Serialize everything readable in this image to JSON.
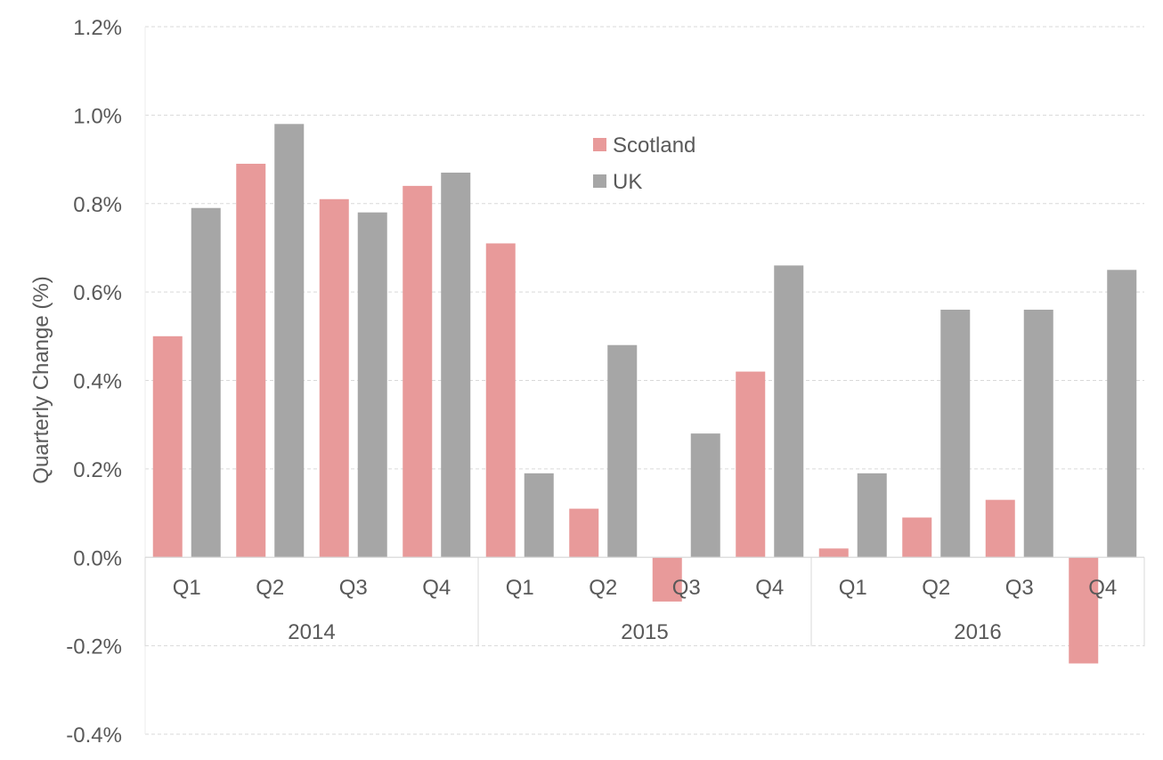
{
  "chart_data": {
    "type": "bar",
    "title": "",
    "ylabel": "Quarterly Change (%)",
    "xlabel": "",
    "ylim": [
      -0.4,
      1.2
    ],
    "yticks": [
      -0.4,
      -0.2,
      0.0,
      0.2,
      0.4,
      0.6,
      0.8,
      1.0,
      1.2
    ],
    "ytick_labels": [
      "-0.4%",
      "-0.2%",
      "0.0%",
      "0.2%",
      "0.4%",
      "0.6%",
      "0.8%",
      "1.0%",
      "1.2%"
    ],
    "grid": true,
    "legend_position": "top-center",
    "groups": [
      {
        "label": "2014",
        "categories": [
          "Q1",
          "Q2",
          "Q3",
          "Q4"
        ]
      },
      {
        "label": "2015",
        "categories": [
          "Q1",
          "Q2",
          "Q3",
          "Q4"
        ]
      },
      {
        "label": "2016",
        "categories": [
          "Q1",
          "Q2",
          "Q3",
          "Q4"
        ]
      }
    ],
    "series": [
      {
        "name": "Scotland",
        "color": "#e89a9a",
        "values": [
          0.5,
          0.89,
          0.81,
          0.84,
          0.71,
          0.11,
          -0.1,
          0.42,
          0.02,
          0.09,
          0.13,
          -0.24
        ]
      },
      {
        "name": "UK",
        "color": "#a6a6a6",
        "values": [
          0.79,
          0.98,
          0.78,
          0.87,
          0.19,
          0.48,
          0.28,
          0.66,
          0.19,
          0.56,
          0.56,
          0.65
        ]
      }
    ]
  }
}
